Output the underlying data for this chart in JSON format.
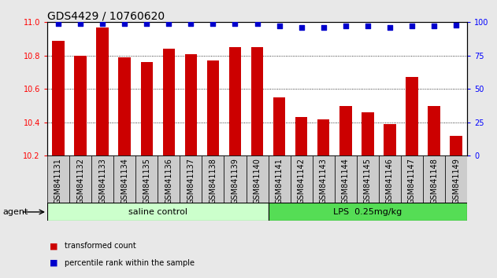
{
  "title": "GDS4429 / 10760620",
  "categories": [
    "GSM841131",
    "GSM841132",
    "GSM841133",
    "GSM841134",
    "GSM841135",
    "GSM841136",
    "GSM841137",
    "GSM841138",
    "GSM841139",
    "GSM841140",
    "GSM841141",
    "GSM841142",
    "GSM841143",
    "GSM841144",
    "GSM841145",
    "GSM841146",
    "GSM841147",
    "GSM841148",
    "GSM841149"
  ],
  "bar_values": [
    10.89,
    10.8,
    10.97,
    10.79,
    10.76,
    10.84,
    10.81,
    10.77,
    10.85,
    10.85,
    10.55,
    10.43,
    10.42,
    10.5,
    10.46,
    10.39,
    10.67,
    10.5,
    10.32
  ],
  "bar_bottom": 10.2,
  "percentile_values": [
    99,
    99,
    99,
    99,
    99,
    99,
    99,
    99,
    99,
    99,
    97,
    96,
    96,
    97,
    97,
    96,
    97,
    97,
    98
  ],
  "bar_color": "#cc0000",
  "dot_color": "#0000cc",
  "ylim_left": [
    10.2,
    11.0
  ],
  "ylim_right": [
    0,
    100
  ],
  "yticks_left": [
    10.2,
    10.4,
    10.6,
    10.8,
    11.0
  ],
  "yticks_right": [
    0,
    25,
    50,
    75,
    100
  ],
  "group1_label": "saline control",
  "group1_count": 10,
  "group2_label": "LPS  0.25mg/kg",
  "group2_count": 9,
  "group1_color": "#ccffcc",
  "group2_color": "#55dd55",
  "agent_label": "agent",
  "legend_bar_label": "transformed count",
  "legend_dot_label": "percentile rank within the sample",
  "fig_bg_color": "#e8e8e8",
  "plot_bg_color": "#ffffff",
  "xtick_bg_color": "#cccccc",
  "title_fontsize": 10,
  "tick_fontsize": 7,
  "label_fontsize": 8,
  "bar_width": 0.55
}
